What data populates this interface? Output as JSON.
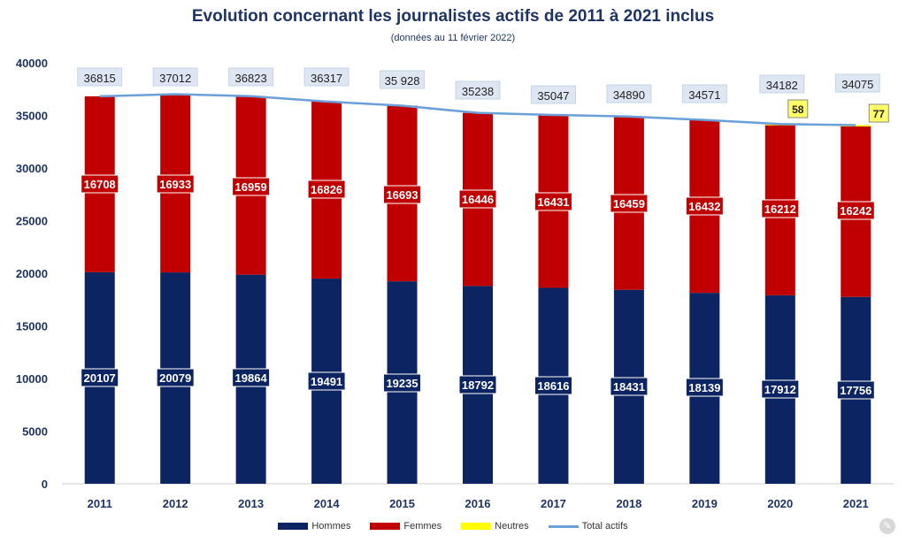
{
  "title": "Evolution concernant les journalistes actifs de 2011 à 2021 inclus",
  "subtitle": "(données au 11 février 2022)",
  "colors": {
    "hommes": "#0c2461",
    "femmes": "#c00000",
    "neutres": "#ffff00",
    "total": "#6a9fd8",
    "axis_text": "#1f3464"
  },
  "chart_data": {
    "type": "bar",
    "stacked": true,
    "categories": [
      "2011",
      "2012",
      "2013",
      "2014",
      "2015",
      "2016",
      "2017",
      "2018",
      "2019",
      "2020",
      "2021"
    ],
    "series": [
      {
        "name": "Hommes",
        "values": [
          20107,
          20079,
          19864,
          19491,
          19235,
          18792,
          18616,
          18431,
          18139,
          17912,
          17756
        ],
        "labels": [
          "20107",
          "20079",
          "19864",
          "19491",
          "19235",
          "18792",
          "18616",
          "18431",
          "18139",
          "17912",
          "17756"
        ]
      },
      {
        "name": "Femmes",
        "values": [
          16708,
          16933,
          16959,
          16826,
          16693,
          16446,
          16431,
          16459,
          16432,
          16212,
          16242
        ],
        "labels": [
          "16708",
          "16933",
          "16959",
          "16826",
          "16693",
          "16446",
          "16431",
          "16459",
          "16432",
          "16212",
          "16242"
        ]
      },
      {
        "name": "Neutres",
        "values": [
          0,
          0,
          0,
          0,
          0,
          0,
          0,
          0,
          0,
          58,
          77
        ],
        "labels": [
          "",
          "",
          "",
          "",
          "",
          "",
          "",
          "",
          "",
          "58",
          "77"
        ]
      }
    ],
    "line": {
      "name": "Total actifs",
      "values": [
        36815,
        37012,
        36823,
        36317,
        35928,
        35238,
        35047,
        34890,
        34571,
        34182,
        34075
      ],
      "labels": [
        "36815",
        "37012",
        "36823",
        "36317",
        "35 928",
        "35238",
        "35047",
        "34890",
        "34571",
        "34182",
        "34075"
      ]
    },
    "ylim": [
      0,
      40000
    ],
    "yticks": [
      "0",
      "5000",
      "10000",
      "15000",
      "20000",
      "25000",
      "30000",
      "35000",
      "40000"
    ],
    "ytick_values": [
      0,
      5000,
      10000,
      15000,
      20000,
      25000,
      30000,
      35000,
      40000
    ],
    "legend_position": "bottom",
    "grid": false
  },
  "legend": [
    "Hommes",
    "Femmes",
    "Neutres",
    "Total actifs"
  ]
}
